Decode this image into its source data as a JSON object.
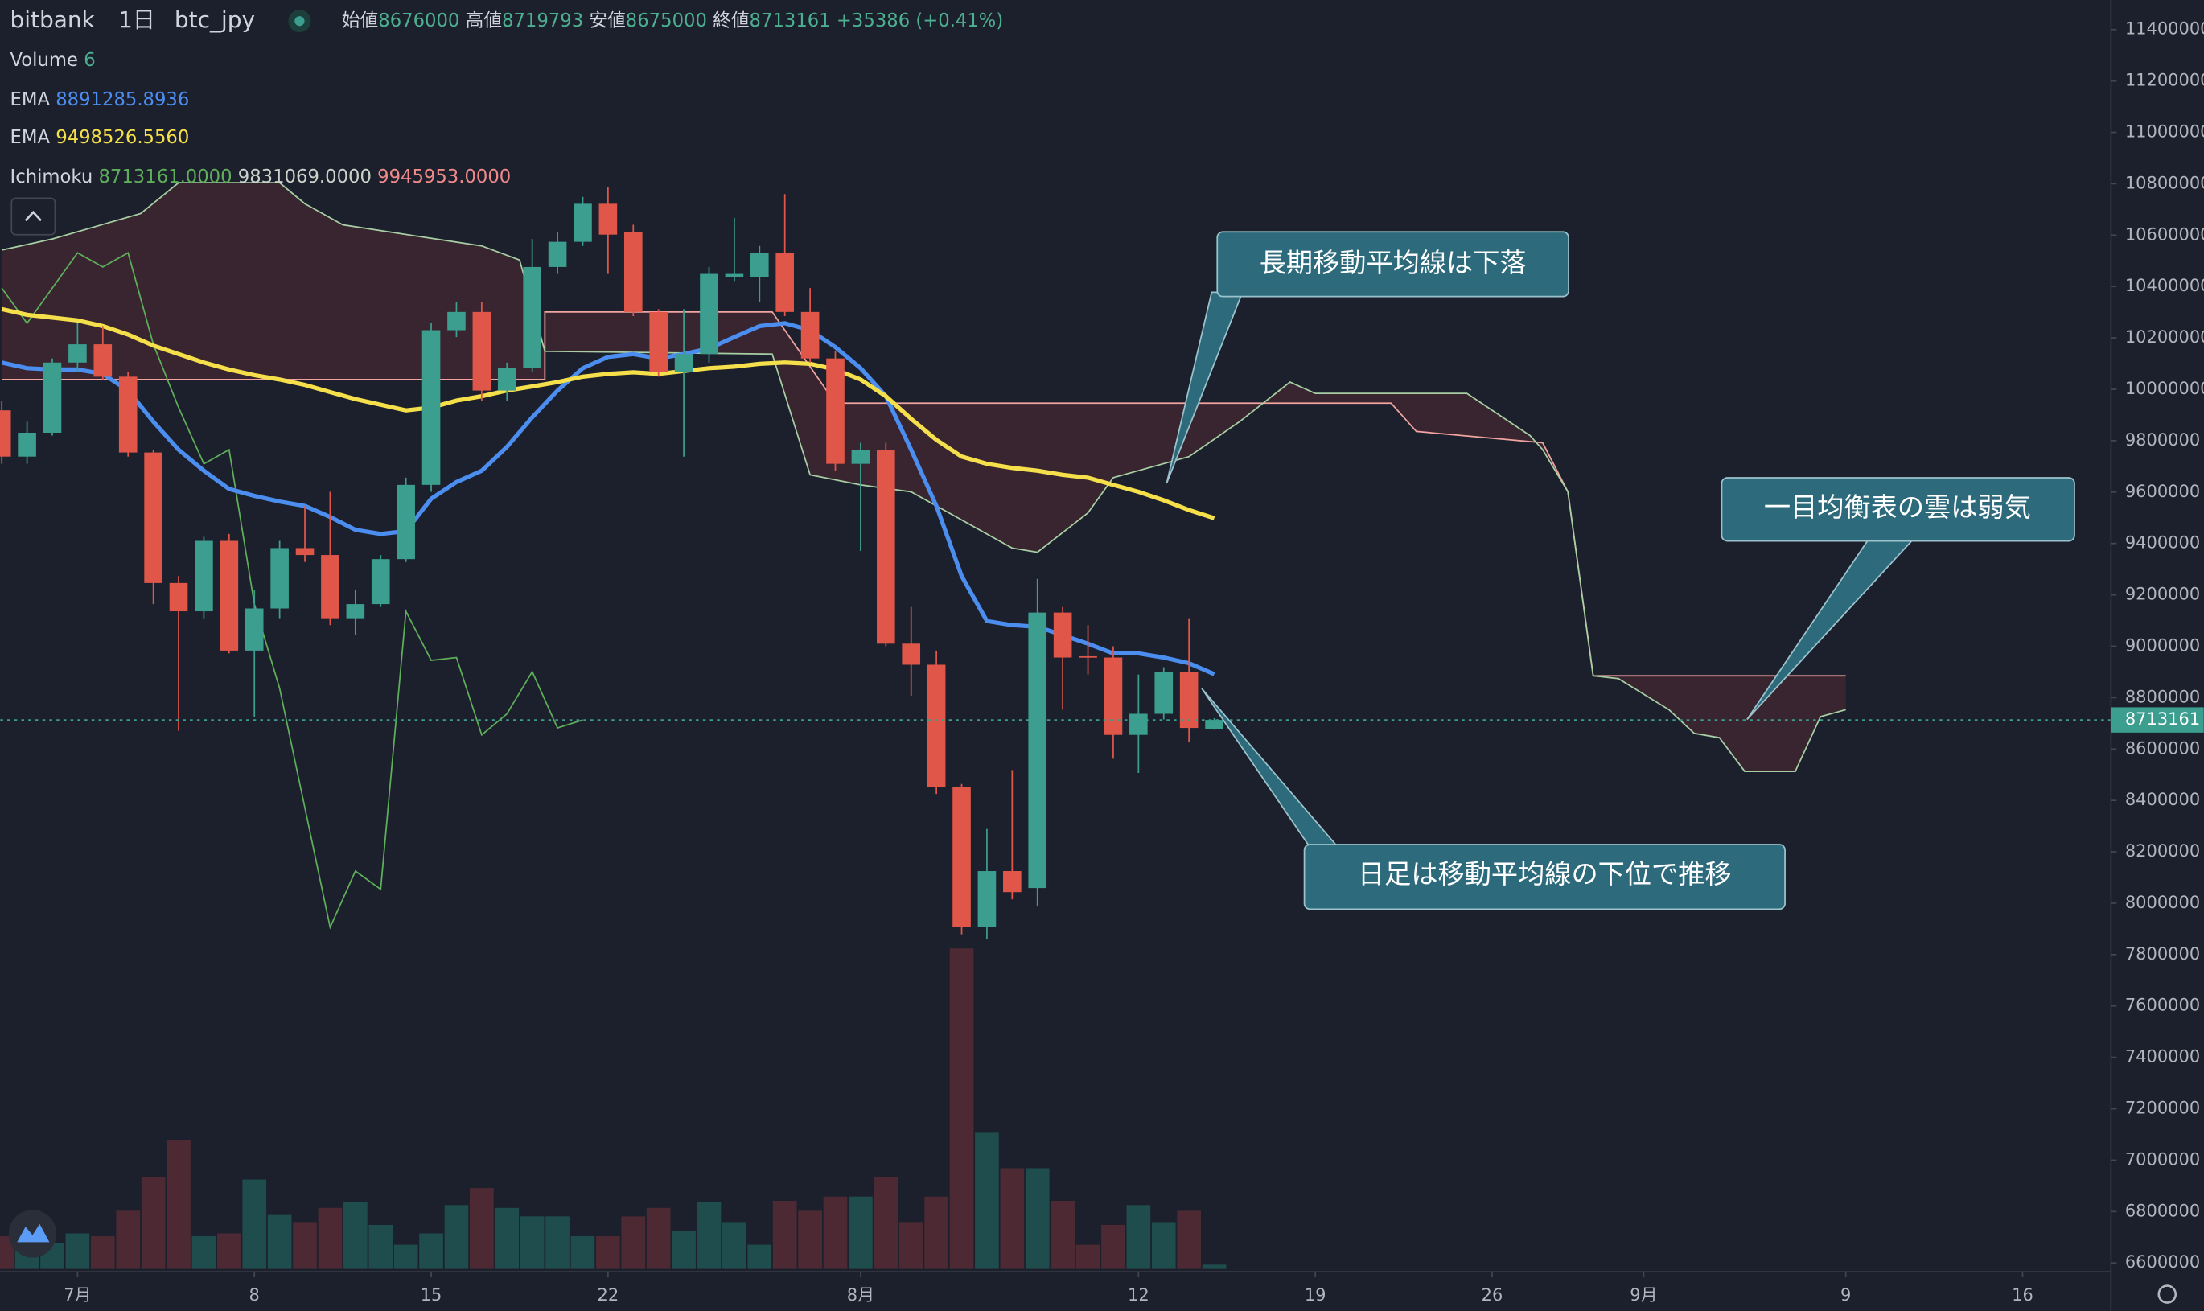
{
  "chart_data": {
    "type": "candlestick",
    "header": {
      "exchange": "bitbank",
      "interval": "1日",
      "symbol": "btc_jpy",
      "ohlc_labels": [
        "始値",
        "高値",
        "安値",
        "終値"
      ],
      "change": "+35386 (+0.41%)"
    },
    "x": [
      -3,
      -2,
      -1,
      0,
      1,
      2,
      3,
      4,
      5,
      6,
      7,
      8,
      9,
      10,
      11,
      12,
      13,
      14,
      15,
      16,
      17,
      18,
      19,
      20,
      21,
      22,
      23,
      24,
      25,
      26,
      27,
      28,
      29,
      30,
      31,
      32,
      33,
      34,
      35,
      36,
      37,
      38,
      39,
      40,
      41,
      42,
      43,
      44,
      45
    ],
    "open": [
      9918000,
      9738000,
      9831000,
      10104000,
      10175000,
      10049000,
      9754000,
      9246000,
      9136000,
      9410000,
      8983000,
      9147000,
      9382000,
      9355000,
      9109000,
      9164000,
      9339000,
      9628000,
      10230000,
      10301000,
      9995000,
      10082000,
      10476000,
      10574000,
      10722000,
      10613000,
      10301000,
      10066000,
      10137000,
      10438000,
      10438000,
      10531000,
      10301000,
      10120000,
      9710000,
      9765000,
      9010000,
      8928000,
      8453000,
      7906000,
      8125000,
      8059000,
      9131000,
      8961000,
      8956000,
      8655000,
      8737000,
      8901000,
      8676000
    ],
    "high": [
      9956000,
      9874000,
      10120000,
      10257000,
      10246000,
      10066000,
      9765000,
      9273000,
      9426000,
      9437000,
      9218000,
      9410000,
      9546000,
      9601000,
      9218000,
      9355000,
      9656000,
      10257000,
      10339000,
      10339000,
      10104000,
      10585000,
      10613000,
      10749000,
      10788000,
      10640000,
      10312000,
      10312000,
      10476000,
      10667000,
      10558000,
      10760000,
      10394000,
      10148000,
      9792000,
      9792000,
      9153000,
      8983000,
      8464000,
      8289000,
      8518000,
      9262000,
      9153000,
      9082000,
      9000000,
      8890000,
      8918000,
      9109000,
      8719793
    ],
    "low": [
      9710000,
      9710000,
      9820000,
      10066000,
      10038000,
      9738000,
      9164000,
      8671000,
      9109000,
      8972000,
      8726000,
      9109000,
      9328000,
      9082000,
      9043000,
      9153000,
      9328000,
      9601000,
      10203000,
      9956000,
      9956000,
      10066000,
      10449000,
      10558000,
      10449000,
      10285000,
      10049000,
      9738000,
      10104000,
      10421000,
      10339000,
      10285000,
      10104000,
      9683000,
      9371000,
      9000000,
      8808000,
      8425000,
      7879000,
      7862000,
      8015000,
      7988000,
      8753000,
      8890000,
      8562000,
      8507000,
      8715000,
      8628000,
      8675000
    ],
    "close": [
      9738000,
      9831000,
      10104000,
      10175000,
      10049000,
      9754000,
      9246000,
      9136000,
      9410000,
      8983000,
      9147000,
      9382000,
      9355000,
      9109000,
      9164000,
      9339000,
      9628000,
      10230000,
      10301000,
      9995000,
      10082000,
      10476000,
      10574000,
      10722000,
      10602000,
      10301000,
      10066000,
      10137000,
      10449000,
      10449000,
      10531000,
      10301000,
      10120000,
      9710000,
      9765000,
      9010000,
      8928000,
      8453000,
      7906000,
      8125000,
      8043000,
      9131000,
      8956000,
      8956000,
      8655000,
      8737000,
      8901000,
      8682000,
      8713161
    ],
    "up_color": "#3b9e8f",
    "down_color": "#e0574a",
    "volume_up_color": "#1f4d4e",
    "volume_down_color": "#4d2a33",
    "volume_name": "Volume",
    "volume": [
      46,
      66,
      36,
      50,
      46,
      82,
      130,
      182,
      46,
      50,
      126,
      76,
      66,
      86,
      94,
      62,
      34,
      50,
      90,
      114,
      86,
      74,
      74,
      46,
      46,
      74,
      86,
      54,
      94,
      66,
      34,
      96,
      82,
      102,
      102,
      130,
      66,
      102,
      452,
      192,
      142,
      142,
      96,
      34,
      62,
      90,
      66,
      82,
      6
    ],
    "series": [
      {
        "name": "EMA",
        "color": "#4b8ef0",
        "values": [
          10104000,
          10082000,
          10077000,
          10077000,
          10060000,
          9995000,
          9874000,
          9765000,
          9683000,
          9612000,
          9585000,
          9563000,
          9546000,
          9503000,
          9453000,
          9437000,
          9448000,
          9574000,
          9639000,
          9683000,
          9776000,
          9891000,
          9995000,
          10082000,
          10126000,
          10137000,
          10120000,
          10137000,
          10159000,
          10203000,
          10246000,
          10257000,
          10230000,
          10164000,
          10082000,
          9973000,
          9765000,
          9546000,
          9273000,
          9098000,
          9082000,
          9076000,
          9043000,
          9010000,
          8972000,
          8972000,
          8956000,
          8934000,
          8891285.8936
        ]
      },
      {
        "name": "EMA",
        "color": "#f5e04b",
        "last_value_label": "9498526.5560",
        "values": [
          10312000,
          10290000,
          10279000,
          10268000,
          10246000,
          10213000,
          10170000,
          10137000,
          10104000,
          10077000,
          10055000,
          10038000,
          10017000,
          9989000,
          9962000,
          9940000,
          9918000,
          9929000,
          9956000,
          9973000,
          9995000,
          10011000,
          10028000,
          10049000,
          10060000,
          10066000,
          10060000,
          10071000,
          10082000,
          10088000,
          10099000,
          10104000,
          10099000,
          10077000,
          10038000,
          9973000,
          9885000,
          9803000,
          9738000,
          9710000,
          9694000,
          9683000,
          9667000,
          9656000,
          9628000,
          9601000,
          9568000,
          9530000,
          9498526.556
        ]
      }
    ],
    "ichimoku": {
      "name": "Ichimoku",
      "value_labels": [
        "8713161.0000",
        "9831069.0000",
        "9945953.0000"
      ],
      "label_colors": [
        "#5fae5a",
        "#c9d3c9",
        "#f08a8a"
      ],
      "cloud_color": "#6e3238",
      "lagging": {
        "color": "#5fae5a",
        "x": [
          -3,
          -2,
          0,
          1,
          2,
          3,
          4,
          5,
          6,
          7,
          8,
          10,
          11,
          12,
          13,
          14,
          15,
          16,
          17,
          18,
          19,
          20
        ],
        "values": [
          10394000,
          10257000,
          10531000,
          10476000,
          10531000,
          10175000,
          9929000,
          9710000,
          9765000,
          9164000,
          8836000,
          7906000,
          8125000,
          8054000,
          9136000,
          8945000,
          8956000,
          8655000,
          8737000,
          8901000,
          8682000,
          8713161
        ]
      },
      "span_a": {
        "color": "#a8cfa4",
        "x": [
          -3,
          -1,
          2.5,
          4,
          8,
          9,
          10.5,
          16,
          17.5,
          18.5,
          27.5,
          29,
          31,
          33,
          37,
          38,
          40,
          41,
          44,
          46,
          48,
          49,
          55,
          57.5,
          58,
          59,
          60,
          61,
          63,
          64,
          65,
          66,
          68,
          69,
          70
        ],
        "values": [
          10542000,
          10585000,
          10684000,
          10804000,
          10804000,
          10722000,
          10640000,
          10558000,
          10503000,
          10148000,
          10137000,
          9667000,
          9628000,
          9601000,
          9382000,
          9366000,
          9519000,
          9656000,
          9738000,
          9874000,
          10028000,
          9984000,
          9984000,
          9820000,
          9765000,
          9601000,
          8885000,
          8874000,
          8753000,
          8661000,
          8644000,
          8513000,
          8513000,
          8726000,
          8753000
        ]
      },
      "span_b": {
        "color": "#f2a5a0",
        "x": [
          -3,
          18.5,
          18.5,
          27.5,
          30,
          52,
          53,
          58,
          59,
          60,
          70
        ],
        "values": [
          10038000,
          10038000,
          10301000,
          10301000,
          9946000,
          9946000,
          9836000,
          9792000,
          9601000,
          8885000,
          8885000
        ]
      }
    },
    "annotations": [
      "長期移動平均線は下落",
      "一目均衡表の雲は弱気",
      "日足は移動平均線の下位で推移"
    ],
    "xlim": [
      -3.06,
      80.5
    ],
    "xticks": [
      {
        "value": 0,
        "label": "7月"
      },
      {
        "value": 7,
        "label": "8"
      },
      {
        "value": 14,
        "label": "15"
      },
      {
        "value": 21,
        "label": "22"
      },
      {
        "value": 31,
        "label": "8月"
      },
      {
        "value": 42,
        "label": "12"
      },
      {
        "value": 49,
        "label": "19"
      },
      {
        "value": 56,
        "label": "26"
      },
      {
        "value": 62,
        "label": "9月"
      },
      {
        "value": 70,
        "label": "9"
      },
      {
        "value": 77,
        "label": "16"
      }
    ],
    "ylim": [
      6566000,
      11515000
    ],
    "yticks": [
      6600000,
      6800000,
      7000000,
      7200000,
      7400000,
      7600000,
      7800000,
      8000000,
      8200000,
      8400000,
      8600000,
      8800000,
      9000000,
      9200000,
      9400000,
      9600000,
      9800000,
      10000000,
      10200000,
      10400000,
      10600000,
      10800000,
      11000000,
      11200000,
      11400000
    ],
    "grid": false
  }
}
